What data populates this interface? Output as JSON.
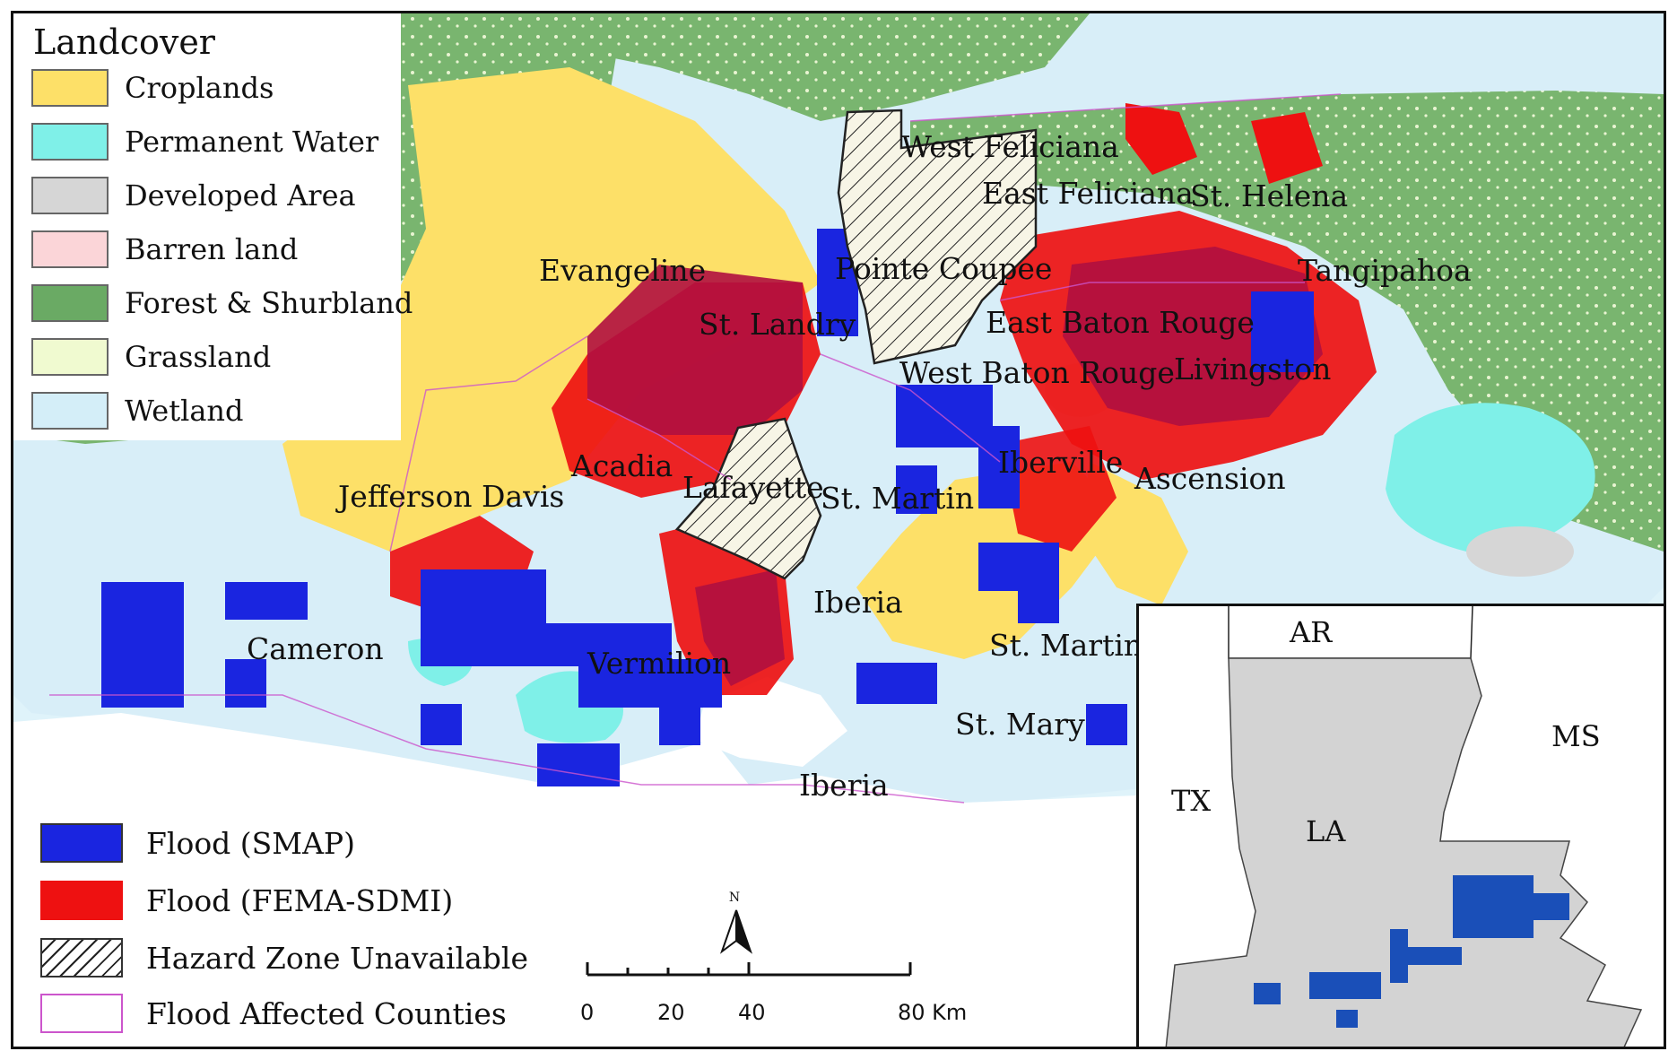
{
  "legend_landcover": {
    "title": "Landcover",
    "items": [
      {
        "label": "Croplands",
        "color": "#fde068"
      },
      {
        "label": "Permanent Water",
        "color": "#7ff0e8"
      },
      {
        "label": "Developed Area",
        "color": "#d6d6d6"
      },
      {
        "label": "Barren land",
        "color": "#fbd5d8"
      },
      {
        "label": "Forest & Shurbland",
        "color": "#6aaa64"
      },
      {
        "label": "Grassland",
        "color": "#f0fad0"
      },
      {
        "label": "Wetland",
        "color": "#d4eef8"
      }
    ]
  },
  "legend_flood": {
    "items": [
      {
        "label": "Flood (SMAP)",
        "color": "#1a25e0"
      },
      {
        "label": "Flood (FEMA-SDMI)",
        "color": "#ee1111"
      },
      {
        "label": "Hazard Zone Unavailable",
        "color": "hatch"
      },
      {
        "label": "Flood Affected Counties",
        "color": "#cc55cc"
      }
    ]
  },
  "parishes": [
    "West Feliciana",
    "East Feliciana",
    "St. Helena",
    "Tangipahoa",
    "Evangeline",
    "Pointe Coupee",
    "St. Landry",
    "East Baton Rouge",
    "West Baton Rouge",
    "Livingston",
    "Acadia",
    "Iberville",
    "Ascension",
    "Jefferson Davis",
    "Lafayette",
    "St. Martin",
    "Iberia",
    "Cameron",
    "Vermilion",
    "St. Martin",
    "St. Mary",
    "Iberia"
  ],
  "north_arrow": {
    "label": "N"
  },
  "scale_bar": {
    "ticks": [
      "0",
      "20",
      "40",
      "80 Km"
    ]
  },
  "inset": {
    "labels": [
      "AR",
      "MS",
      "TX",
      "LA"
    ]
  }
}
